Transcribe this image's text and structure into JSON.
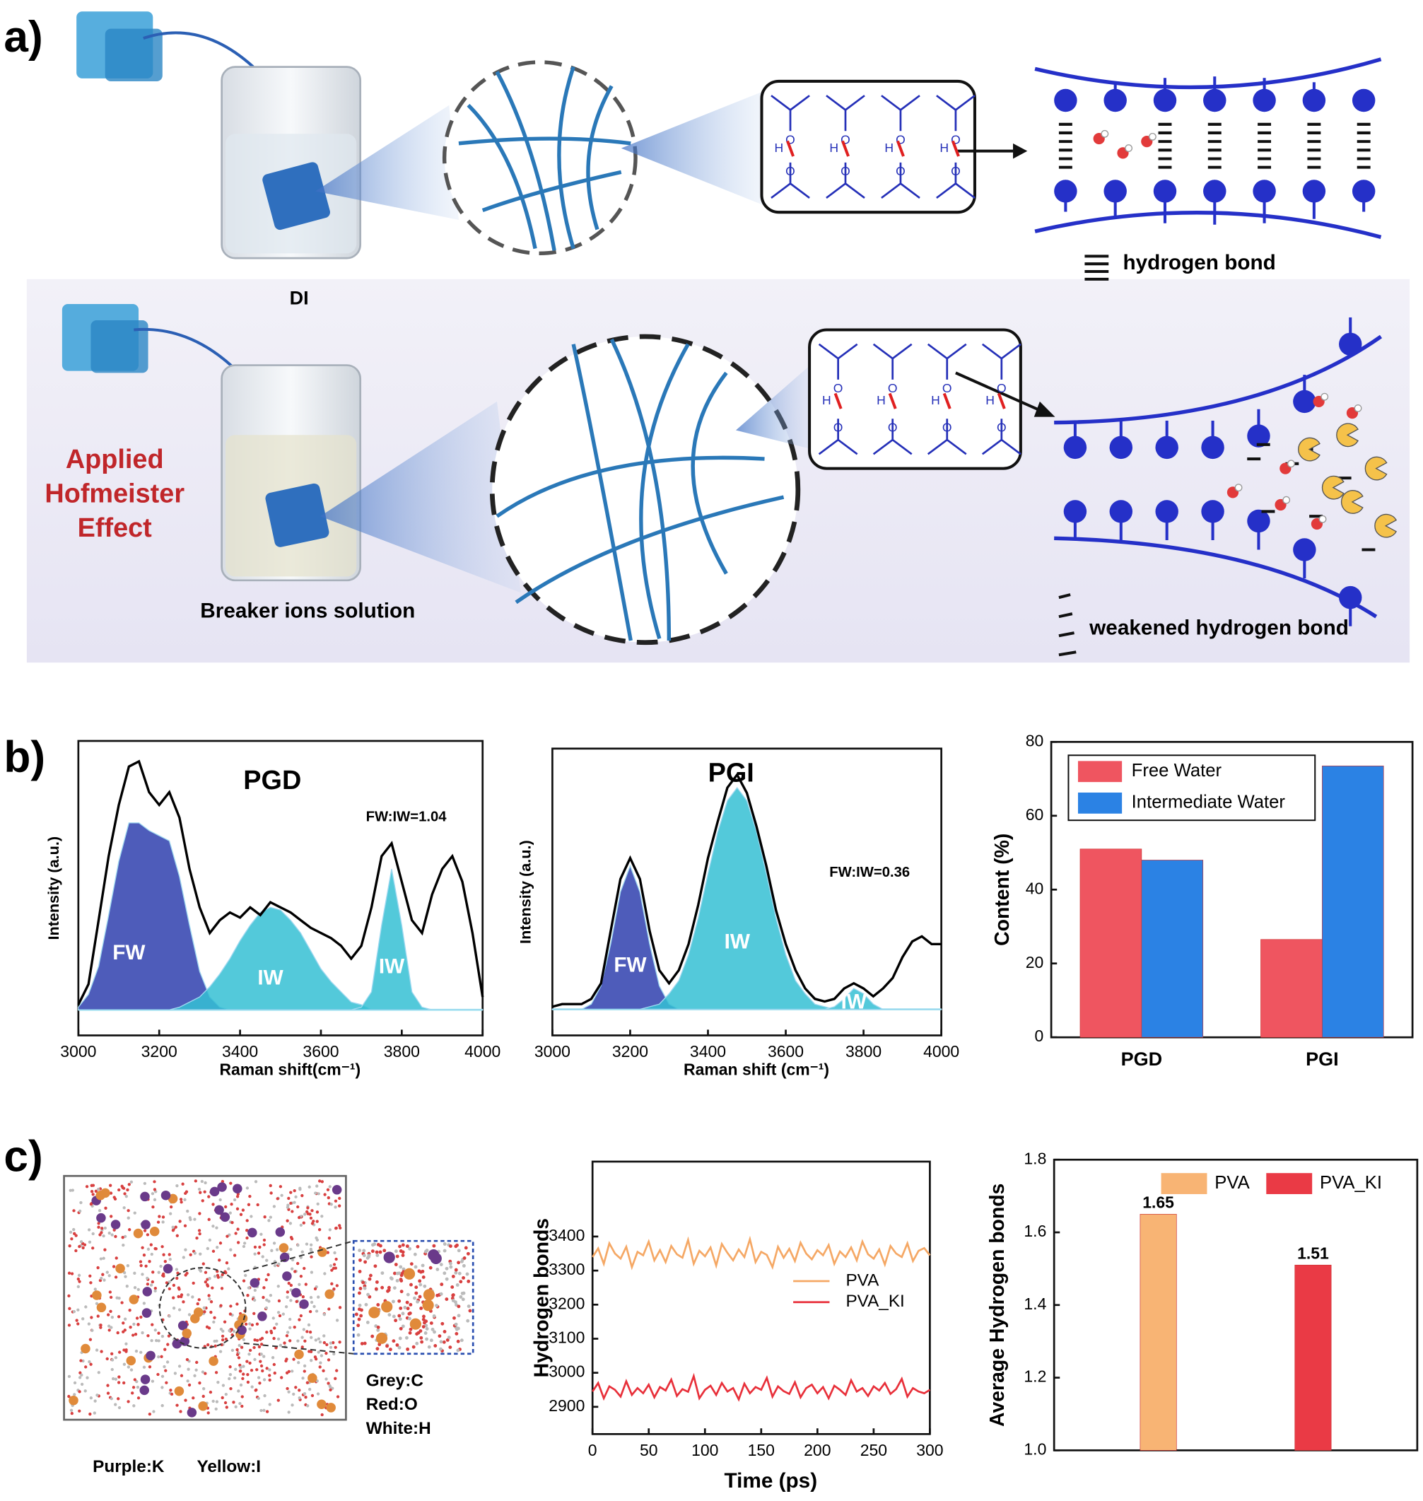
{
  "figure": {
    "panel_labels": [
      "a)",
      "b)",
      "c)"
    ],
    "diagram": {
      "dry_label": "DI",
      "salt_label": "Breaker ions solution",
      "effect_label": [
        "Applied",
        "Hofmeister",
        "Effect"
      ],
      "bond_legend": "hydrogen bond",
      "weak_bond_legend": "weakened hydrogen bond",
      "atom_o": "O",
      "atom_h": "H"
    },
    "simulation": {
      "ion_legend": [
        "Purple:K",
        "Yellow:I"
      ],
      "atom_legend": [
        "Grey:C",
        "Red:O",
        "White:H"
      ]
    }
  },
  "chart_data": [
    {
      "type": "area",
      "title": "PGD",
      "annotation": "FW:IW=1.04",
      "x_label": "Raman shift(cm⁻¹)",
      "y_label": "Intensity (a.u.)",
      "x": [
        3000,
        3025,
        3050,
        3075,
        3100,
        3125,
        3150,
        3175,
        3200,
        3225,
        3250,
        3275,
        3300,
        3325,
        3350,
        3375,
        3400,
        3425,
        3450,
        3475,
        3500,
        3525,
        3550,
        3575,
        3600,
        3625,
        3650,
        3675,
        3700,
        3725,
        3750,
        3775,
        3800,
        3825,
        3850,
        3875,
        3900,
        3925,
        3950,
        3975,
        4000
      ],
      "xlim": [
        3000,
        4000
      ],
      "xticks": [
        3000,
        3200,
        3400,
        3600,
        3800,
        4000
      ],
      "ylim": [
        -0.1,
        1.05
      ],
      "series": [
        {
          "name": "FW",
          "color": "#2f3fae",
          "filled": true,
          "values": [
            0.01,
            0.06,
            0.17,
            0.37,
            0.58,
            0.73,
            0.73,
            0.7,
            0.68,
            0.66,
            0.52,
            0.33,
            0.15,
            0.05,
            0.01,
            0,
            0,
            0,
            0,
            0,
            0,
            0,
            0,
            0,
            0,
            0,
            0,
            0,
            0,
            0,
            0,
            0,
            0,
            0,
            0,
            0,
            0,
            0,
            0,
            0,
            0
          ]
        },
        {
          "name": "IW",
          "color": "#35c0d4",
          "filled": true,
          "values": [
            0,
            0,
            0,
            0,
            0,
            0,
            0,
            0,
            0,
            0,
            0.01,
            0.03,
            0.05,
            0.09,
            0.14,
            0.2,
            0.27,
            0.33,
            0.38,
            0.4,
            0.39,
            0.35,
            0.3,
            0.23,
            0.16,
            0.11,
            0.07,
            0.03,
            0.02,
            0,
            0,
            0,
            0,
            0,
            0,
            0,
            0,
            0,
            0,
            0,
            0
          ]
        },
        {
          "name": "IW",
          "color": "#35c0d4",
          "filled": true,
          "values": [
            0,
            0,
            0,
            0,
            0,
            0,
            0,
            0,
            0,
            0,
            0,
            0,
            0,
            0,
            0,
            0,
            0,
            0,
            0,
            0,
            0,
            0,
            0,
            0,
            0,
            0,
            0,
            0,
            0.01,
            0.07,
            0.33,
            0.55,
            0.33,
            0.07,
            0.01,
            0,
            0,
            0,
            0,
            0,
            0
          ]
        },
        {
          "color": "#000000",
          "filled": false,
          "values": [
            0.02,
            0.1,
            0.35,
            0.6,
            0.8,
            0.95,
            0.97,
            0.85,
            0.8,
            0.85,
            0.75,
            0.55,
            0.4,
            0.3,
            0.35,
            0.38,
            0.36,
            0.4,
            0.37,
            0.42,
            0.4,
            0.38,
            0.35,
            0.32,
            0.3,
            0.28,
            0.25,
            0.2,
            0.25,
            0.4,
            0.6,
            0.65,
            0.5,
            0.35,
            0.3,
            0.45,
            0.55,
            0.6,
            0.5,
            0.3,
            0.05
          ]
        }
      ]
    },
    {
      "type": "area",
      "title": "PGI",
      "annotation": "FW:IW=0.36",
      "x_label": "Raman shift (cm⁻¹)",
      "y_label": "Intensity (a.u.)",
      "x": [
        3000,
        3025,
        3050,
        3075,
        3100,
        3125,
        3150,
        3175,
        3200,
        3225,
        3250,
        3275,
        3300,
        3325,
        3350,
        3375,
        3400,
        3425,
        3450,
        3475,
        3500,
        3525,
        3550,
        3575,
        3600,
        3625,
        3650,
        3675,
        3700,
        3725,
        3750,
        3775,
        3800,
        3825,
        3850,
        3875,
        3900,
        3925,
        3950,
        3975,
        4000
      ],
      "xlim": [
        3000,
        4000
      ],
      "xticks": [
        3000,
        3200,
        3400,
        3600,
        3800,
        4000
      ],
      "ylim": [
        -0.1,
        1.0
      ],
      "series": [
        {
          "name": "FW",
          "color": "#2f3fae",
          "filled": true,
          "values": [
            0,
            0,
            0,
            0,
            0.02,
            0.09,
            0.25,
            0.45,
            0.55,
            0.45,
            0.25,
            0.09,
            0.02,
            0,
            0,
            0,
            0,
            0,
            0,
            0,
            0,
            0,
            0,
            0,
            0,
            0,
            0,
            0,
            0,
            0,
            0,
            0,
            0,
            0,
            0,
            0,
            0,
            0,
            0,
            0,
            0
          ]
        },
        {
          "name": "IW",
          "color": "#35c0d4",
          "filled": true,
          "values": [
            0,
            0,
            0,
            0,
            0,
            0,
            0,
            0,
            0,
            0,
            0.01,
            0.02,
            0.06,
            0.11,
            0.21,
            0.35,
            0.52,
            0.68,
            0.8,
            0.85,
            0.8,
            0.68,
            0.52,
            0.35,
            0.21,
            0.11,
            0.06,
            0.02,
            0.01,
            0,
            0,
            0,
            0,
            0,
            0,
            0,
            0,
            0,
            0,
            0,
            0
          ]
        },
        {
          "name": "IW",
          "color": "#35c0d4",
          "filled": true,
          "values": [
            0,
            0,
            0,
            0,
            0,
            0,
            0,
            0,
            0,
            0,
            0,
            0,
            0,
            0,
            0,
            0,
            0,
            0,
            0,
            0,
            0,
            0,
            0,
            0,
            0,
            0,
            0,
            0,
            0,
            0.01,
            0.04,
            0.08,
            0.06,
            0.02,
            0,
            0,
            0,
            0,
            0,
            0,
            0
          ]
        },
        {
          "color": "#000000",
          "filled": false,
          "values": [
            0.01,
            0.02,
            0.02,
            0.02,
            0.04,
            0.1,
            0.3,
            0.5,
            0.58,
            0.5,
            0.3,
            0.15,
            0.1,
            0.15,
            0.25,
            0.4,
            0.58,
            0.72,
            0.85,
            0.9,
            0.83,
            0.7,
            0.55,
            0.38,
            0.25,
            0.15,
            0.08,
            0.04,
            0.03,
            0.04,
            0.08,
            0.1,
            0.08,
            0.05,
            0.08,
            0.12,
            0.2,
            0.26,
            0.28,
            0.25,
            0.25
          ]
        }
      ]
    },
    {
      "type": "bar",
      "y_label": "Content (%)",
      "categories": [
        "PGD",
        "PGI"
      ],
      "ylim": [
        0,
        80
      ],
      "yticks": [
        0,
        20,
        40,
        60,
        80
      ],
      "legend": "top-left",
      "series": [
        {
          "name": "Free Water",
          "color": "#ef5560",
          "values": [
            51,
            26.5
          ]
        },
        {
          "name": "Intermediate Water",
          "color": "#2b82e4",
          "values": [
            48,
            73.5
          ]
        }
      ]
    },
    {
      "type": "line",
      "x_label": "Time (ps)",
      "y_label": "Hydrogen bonds",
      "x": [
        0,
        5,
        10,
        15,
        20,
        25,
        30,
        35,
        40,
        45,
        50,
        55,
        60,
        65,
        70,
        75,
        80,
        85,
        90,
        95,
        100,
        105,
        110,
        115,
        120,
        125,
        130,
        135,
        140,
        145,
        150,
        155,
        160,
        165,
        170,
        175,
        180,
        185,
        190,
        195,
        200,
        205,
        210,
        215,
        220,
        225,
        230,
        235,
        240,
        245,
        250,
        255,
        260,
        265,
        270,
        275,
        280,
        285,
        290,
        295,
        300
      ],
      "xlim": [
        0,
        300
      ],
      "xticks": [
        0,
        50,
        100,
        150,
        200,
        250,
        300
      ],
      "ylim": [
        2820,
        3620
      ],
      "yticks": [
        2900,
        3000,
        3100,
        3200,
        3300,
        3400
      ],
      "legend": "center-right",
      "series": [
        {
          "name": "PVA",
          "color": "#f5a865",
          "values": [
            3340,
            3365,
            3320,
            3380,
            3350,
            3335,
            3370,
            3310,
            3355,
            3345,
            3385,
            3330,
            3360,
            3325,
            3372,
            3348,
            3338,
            3390,
            3320,
            3358,
            3342,
            3368,
            3315,
            3378,
            3352,
            3330,
            3362,
            3340,
            3392,
            3325,
            3355,
            3346,
            3310,
            3370,
            3338,
            3364,
            3328,
            3382,
            3350,
            3333,
            3360,
            3345,
            3375,
            3320,
            3356,
            3340,
            3368,
            3330,
            3385,
            3348,
            3335,
            3362,
            3318,
            3372,
            3350,
            3340,
            3380,
            3328,
            3358,
            3366,
            3345
          ]
        },
        {
          "name": "PVA_KI",
          "color": "#e8303a",
          "values": [
            2945,
            2970,
            2925,
            2960,
            2950,
            2930,
            2975,
            2935,
            2955,
            2940,
            2965,
            2928,
            2958,
            2948,
            2980,
            2932,
            2952,
            2944,
            2990,
            2925,
            2950,
            2962,
            2935,
            2970,
            2945,
            2955,
            2922,
            2968,
            2940,
            2958,
            2950,
            2985,
            2930,
            2960,
            2946,
            2938,
            2972,
            2928,
            2955,
            2965,
            2940,
            2958,
            2925,
            2962,
            2950,
            2935,
            2978,
            2945,
            2955,
            2932,
            2960,
            2948,
            2970,
            2938,
            2952,
            2982,
            2930,
            2955,
            2945,
            2940,
            2950
          ]
        }
      ]
    },
    {
      "type": "bar",
      "y_label": "Average Hydrogen bonds",
      "categories": [
        null
      ],
      "ylim": [
        1.0,
        1.8
      ],
      "yticks": [
        {
          "value": 1.0,
          "label": "1.0"
        },
        1.2,
        1.4,
        1.6,
        1.8
      ],
      "legend": "top",
      "data_labels": true,
      "series": [
        {
          "name": "PVA",
          "color": "#f8b474",
          "values": [
            1.65
          ]
        },
        {
          "name": "PVA_KI",
          "color": "#ea3a45",
          "values": [
            1.51
          ]
        }
      ]
    }
  ]
}
